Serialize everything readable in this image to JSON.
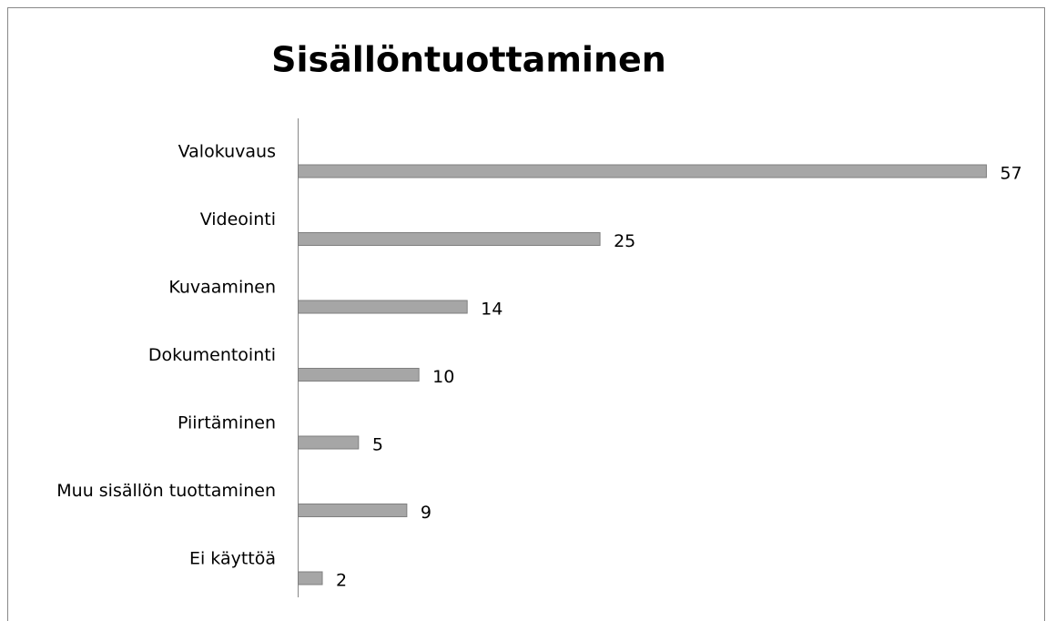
{
  "chart_data": {
    "type": "bar",
    "orientation": "horizontal",
    "title": "Sisällöntuottaminen",
    "categories": [
      "Valokuvaus",
      "Videointi",
      "Kuvaaminen",
      "Dokumentointi",
      "Piirtäminen",
      "Muu sisällön tuottaminen",
      "Ei käyttöä"
    ],
    "values": [
      57,
      25,
      14,
      10,
      5,
      9,
      2
    ],
    "color": "#a6a6a6"
  }
}
